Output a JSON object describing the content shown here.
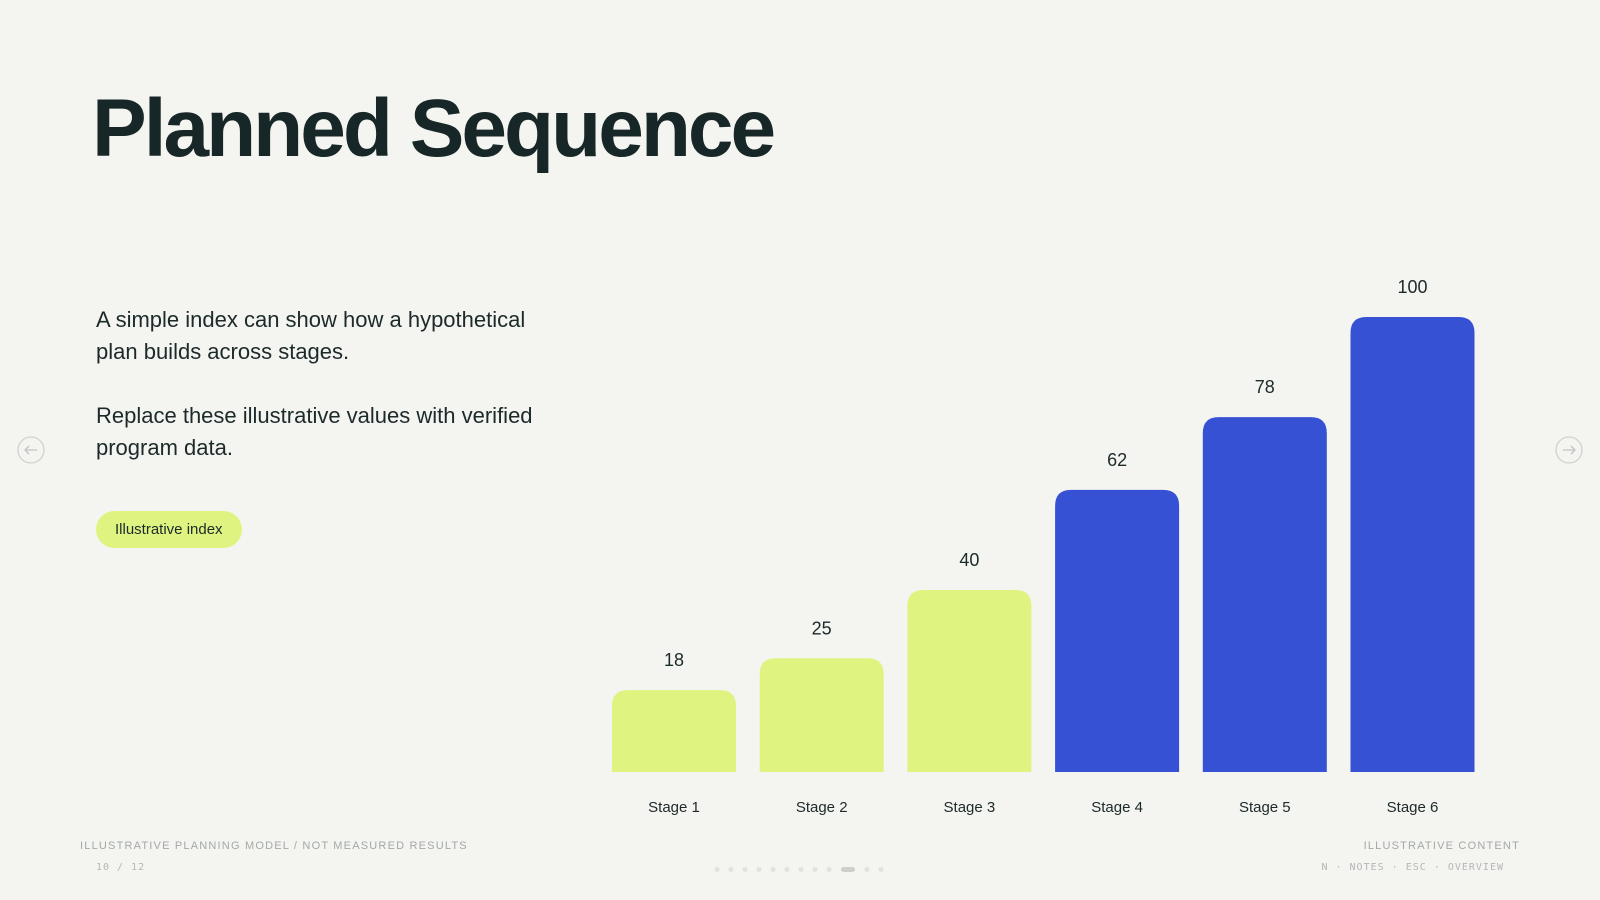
{
  "slide": {
    "title": "Planned Sequence",
    "paragraphs": [
      "A simple index can show how a hypothetical plan builds across stages.",
      "Replace these illustrative values with verified program data."
    ],
    "badge": "Illustrative index",
    "footer_left": "ILLUSTRATIVE PLANNING MODEL / NOT MEASURED RESULTS",
    "slide_counter": "10 / 12",
    "footer_right": "ILLUSTRATIVE CONTENT",
    "shortcuts": "N · NOTES · ESC · OVERVIEW"
  },
  "chart_data": {
    "type": "bar",
    "categories": [
      "Stage 1",
      "Stage 2",
      "Stage 3",
      "Stage 4",
      "Stage 5",
      "Stage 6"
    ],
    "values": [
      18,
      25,
      40,
      62,
      78,
      100
    ],
    "colors": [
      "#dff480",
      "#dff480",
      "#dff480",
      "#3651d4",
      "#3651d4",
      "#3651d4"
    ],
    "ylim": [
      0,
      100
    ]
  }
}
